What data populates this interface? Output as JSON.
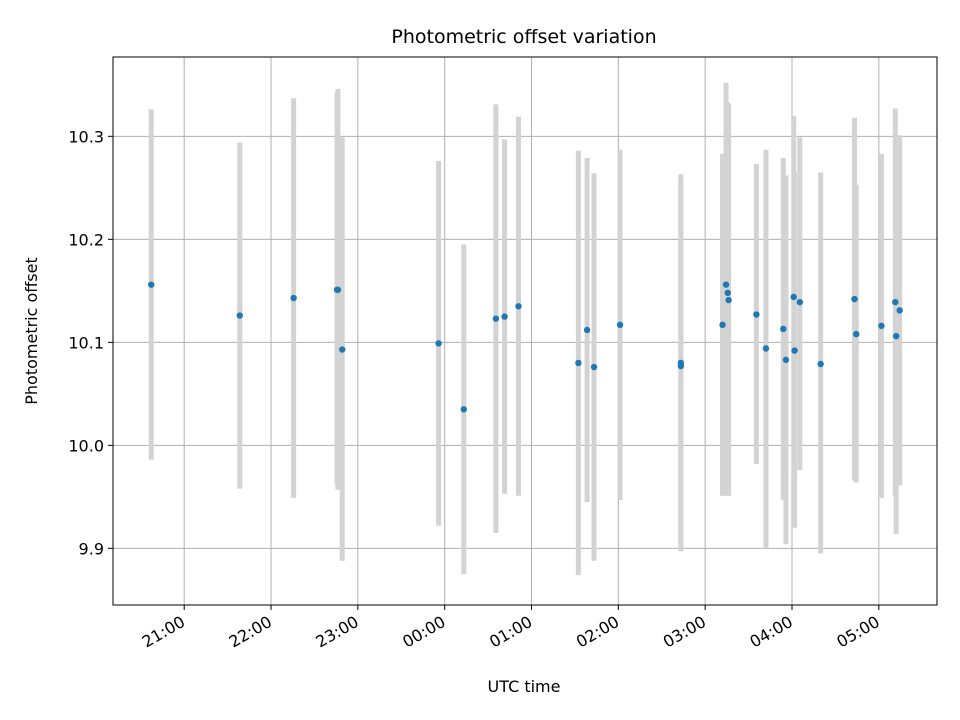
{
  "chart_data": {
    "type": "scatter",
    "title": "Photometric offset variation",
    "xlabel": "UTC time",
    "ylabel": "Photometric offset",
    "grid": true,
    "x_tick_labels": [
      "21:00",
      "22:00",
      "23:00",
      "00:00",
      "01:00",
      "02:00",
      "03:00",
      "04:00",
      "05:00"
    ],
    "x_tick_hours": [
      21,
      22,
      23,
      24,
      25,
      26,
      27,
      28,
      29
    ],
    "y_tick_labels": [
      "9.9",
      "10.0",
      "10.1",
      "10.2",
      "10.3"
    ],
    "y_ticks": [
      9.9,
      10.0,
      10.1,
      10.2,
      10.3
    ],
    "xlim_hours": [
      20.18,
      29.67
    ],
    "ylim": [
      9.845,
      10.377
    ],
    "marker_color": "#1f77b4",
    "errorbar_color": "#d3d3d3",
    "points": [
      {
        "t": "20:37",
        "x_hours": 20.62,
        "y": 10.156,
        "y_low": 9.986,
        "y_high": 10.326
      },
      {
        "t": "21:38",
        "x_hours": 21.64,
        "y": 10.126,
        "y_low": 9.958,
        "y_high": 10.294
      },
      {
        "t": "22:15",
        "x_hours": 22.26,
        "y": 10.143,
        "y_low": 9.949,
        "y_high": 10.337
      },
      {
        "t": "22:45",
        "x_hours": 22.76,
        "y": 10.151,
        "y_low": 9.963,
        "y_high": 10.342
      },
      {
        "t": "22:46",
        "x_hours": 22.77,
        "y": 10.151,
        "y_low": 9.957,
        "y_high": 10.346
      },
      {
        "t": "22:49",
        "x_hours": 22.82,
        "y": 10.093,
        "y_low": 9.888,
        "y_high": 10.299
      },
      {
        "t": "23:56",
        "x_hours": 23.93,
        "y": 10.099,
        "y_low": 9.922,
        "y_high": 10.276
      },
      {
        "t": "00:13",
        "x_hours": 24.22,
        "y": 10.035,
        "y_low": 9.875,
        "y_high": 10.195
      },
      {
        "t": "00:35",
        "x_hours": 24.59,
        "y": 10.123,
        "y_low": 9.915,
        "y_high": 10.331
      },
      {
        "t": "00:42",
        "x_hours": 24.69,
        "y": 10.125,
        "y_low": 9.953,
        "y_high": 10.297
      },
      {
        "t": "00:51",
        "x_hours": 24.85,
        "y": 10.135,
        "y_low": 9.951,
        "y_high": 10.319
      },
      {
        "t": "01:32",
        "x_hours": 25.54,
        "y": 10.08,
        "y_low": 9.874,
        "y_high": 10.286
      },
      {
        "t": "01:38",
        "x_hours": 25.64,
        "y": 10.112,
        "y_low": 9.945,
        "y_high": 10.279
      },
      {
        "t": "01:43",
        "x_hours": 25.72,
        "y": 10.076,
        "y_low": 9.888,
        "y_high": 10.264
      },
      {
        "t": "02:01",
        "x_hours": 26.02,
        "y": 10.117,
        "y_low": 9.947,
        "y_high": 10.287
      },
      {
        "t": "02:43",
        "x_hours": 26.72,
        "y": 10.077,
        "y_low": 9.898,
        "y_high": 10.256
      },
      {
        "t": "02:43",
        "x_hours": 26.72,
        "y": 10.08,
        "y_low": 9.897,
        "y_high": 10.263
      },
      {
        "t": "03:12",
        "x_hours": 27.2,
        "y": 10.117,
        "y_low": 9.951,
        "y_high": 10.283
      },
      {
        "t": "03:14",
        "x_hours": 27.24,
        "y": 10.156,
        "y_low": 9.951,
        "y_high": 10.352
      },
      {
        "t": "03:16",
        "x_hours": 27.26,
        "y": 10.148,
        "y_low": 9.963,
        "y_high": 10.333
      },
      {
        "t": "03:16",
        "x_hours": 27.27,
        "y": 10.141,
        "y_low": 9.951,
        "y_high": 10.331
      },
      {
        "t": "03:35",
        "x_hours": 27.59,
        "y": 10.127,
        "y_low": 9.982,
        "y_high": 10.273
      },
      {
        "t": "03:42",
        "x_hours": 27.7,
        "y": 10.094,
        "y_low": 9.9,
        "y_high": 10.287
      },
      {
        "t": "03:54",
        "x_hours": 27.9,
        "y": 10.113,
        "y_low": 9.947,
        "y_high": 10.279
      },
      {
        "t": "03:56",
        "x_hours": 27.93,
        "y": 10.083,
        "y_low": 9.904,
        "y_high": 10.262
      },
      {
        "t": "04:01",
        "x_hours": 28.02,
        "y": 10.144,
        "y_low": 9.969,
        "y_high": 10.32
      },
      {
        "t": "04:02",
        "x_hours": 28.03,
        "y": 10.092,
        "y_low": 9.92,
        "y_high": 10.265
      },
      {
        "t": "04:05",
        "x_hours": 28.09,
        "y": 10.139,
        "y_low": 9.976,
        "y_high": 10.299
      },
      {
        "t": "04:20",
        "x_hours": 28.33,
        "y": 10.079,
        "y_low": 9.895,
        "y_high": 10.265
      },
      {
        "t": "04:43",
        "x_hours": 28.72,
        "y": 10.142,
        "y_low": 9.966,
        "y_high": 10.318
      },
      {
        "t": "04:44",
        "x_hours": 28.74,
        "y": 10.108,
        "y_low": 9.964,
        "y_high": 10.253
      },
      {
        "t": "05:02",
        "x_hours": 29.03,
        "y": 10.116,
        "y_low": 9.949,
        "y_high": 10.283
      },
      {
        "t": "05:11",
        "x_hours": 29.19,
        "y": 10.139,
        "y_low": 9.951,
        "y_high": 10.327
      },
      {
        "t": "05:12",
        "x_hours": 29.2,
        "y": 10.106,
        "y_low": 9.914,
        "y_high": 10.297
      },
      {
        "t": "05:14",
        "x_hours": 29.24,
        "y": 10.131,
        "y_low": 9.961,
        "y_high": 10.301
      }
    ]
  }
}
